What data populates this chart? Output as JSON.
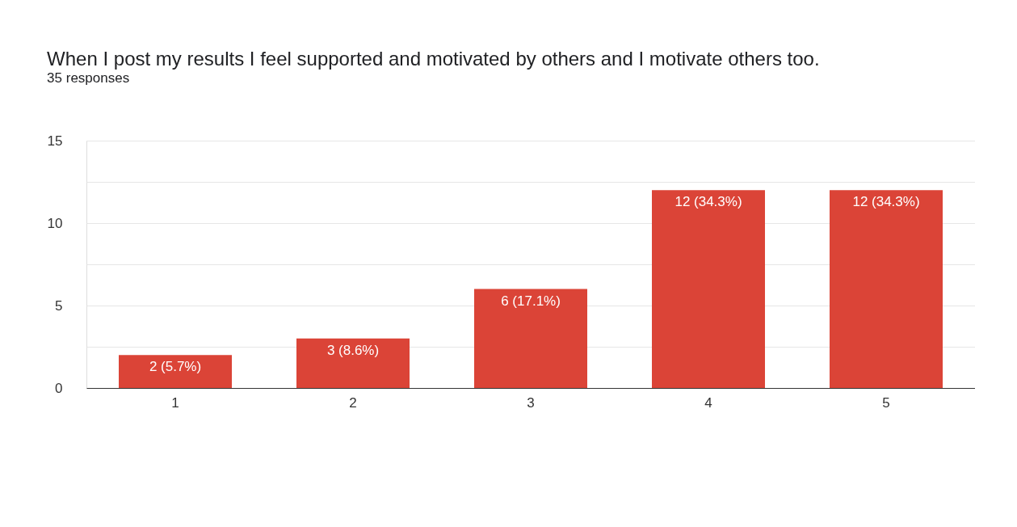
{
  "chart_data": {
    "type": "bar",
    "title": "When I post my results I feel supported and motivated by others and I motivate others too.",
    "subtitle": "35 responses",
    "categories": [
      "1",
      "2",
      "3",
      "4",
      "5"
    ],
    "values": [
      2,
      3,
      6,
      12,
      12
    ],
    "color": "#db4437",
    "value_labels": [
      "2 (5.7%)",
      "3 (8.6%)",
      "6 (17.1%)",
      "12 (34.3%)",
      "12 (34.3%)"
    ],
    "ylim": [
      0,
      15
    ],
    "yticks": [
      0,
      {
        "value": 2.5,
        "label": null
      },
      5,
      {
        "value": 7.5,
        "label": null
      },
      10,
      {
        "value": 12.5,
        "label": null
      },
      15
    ],
    "grid": true
  }
}
